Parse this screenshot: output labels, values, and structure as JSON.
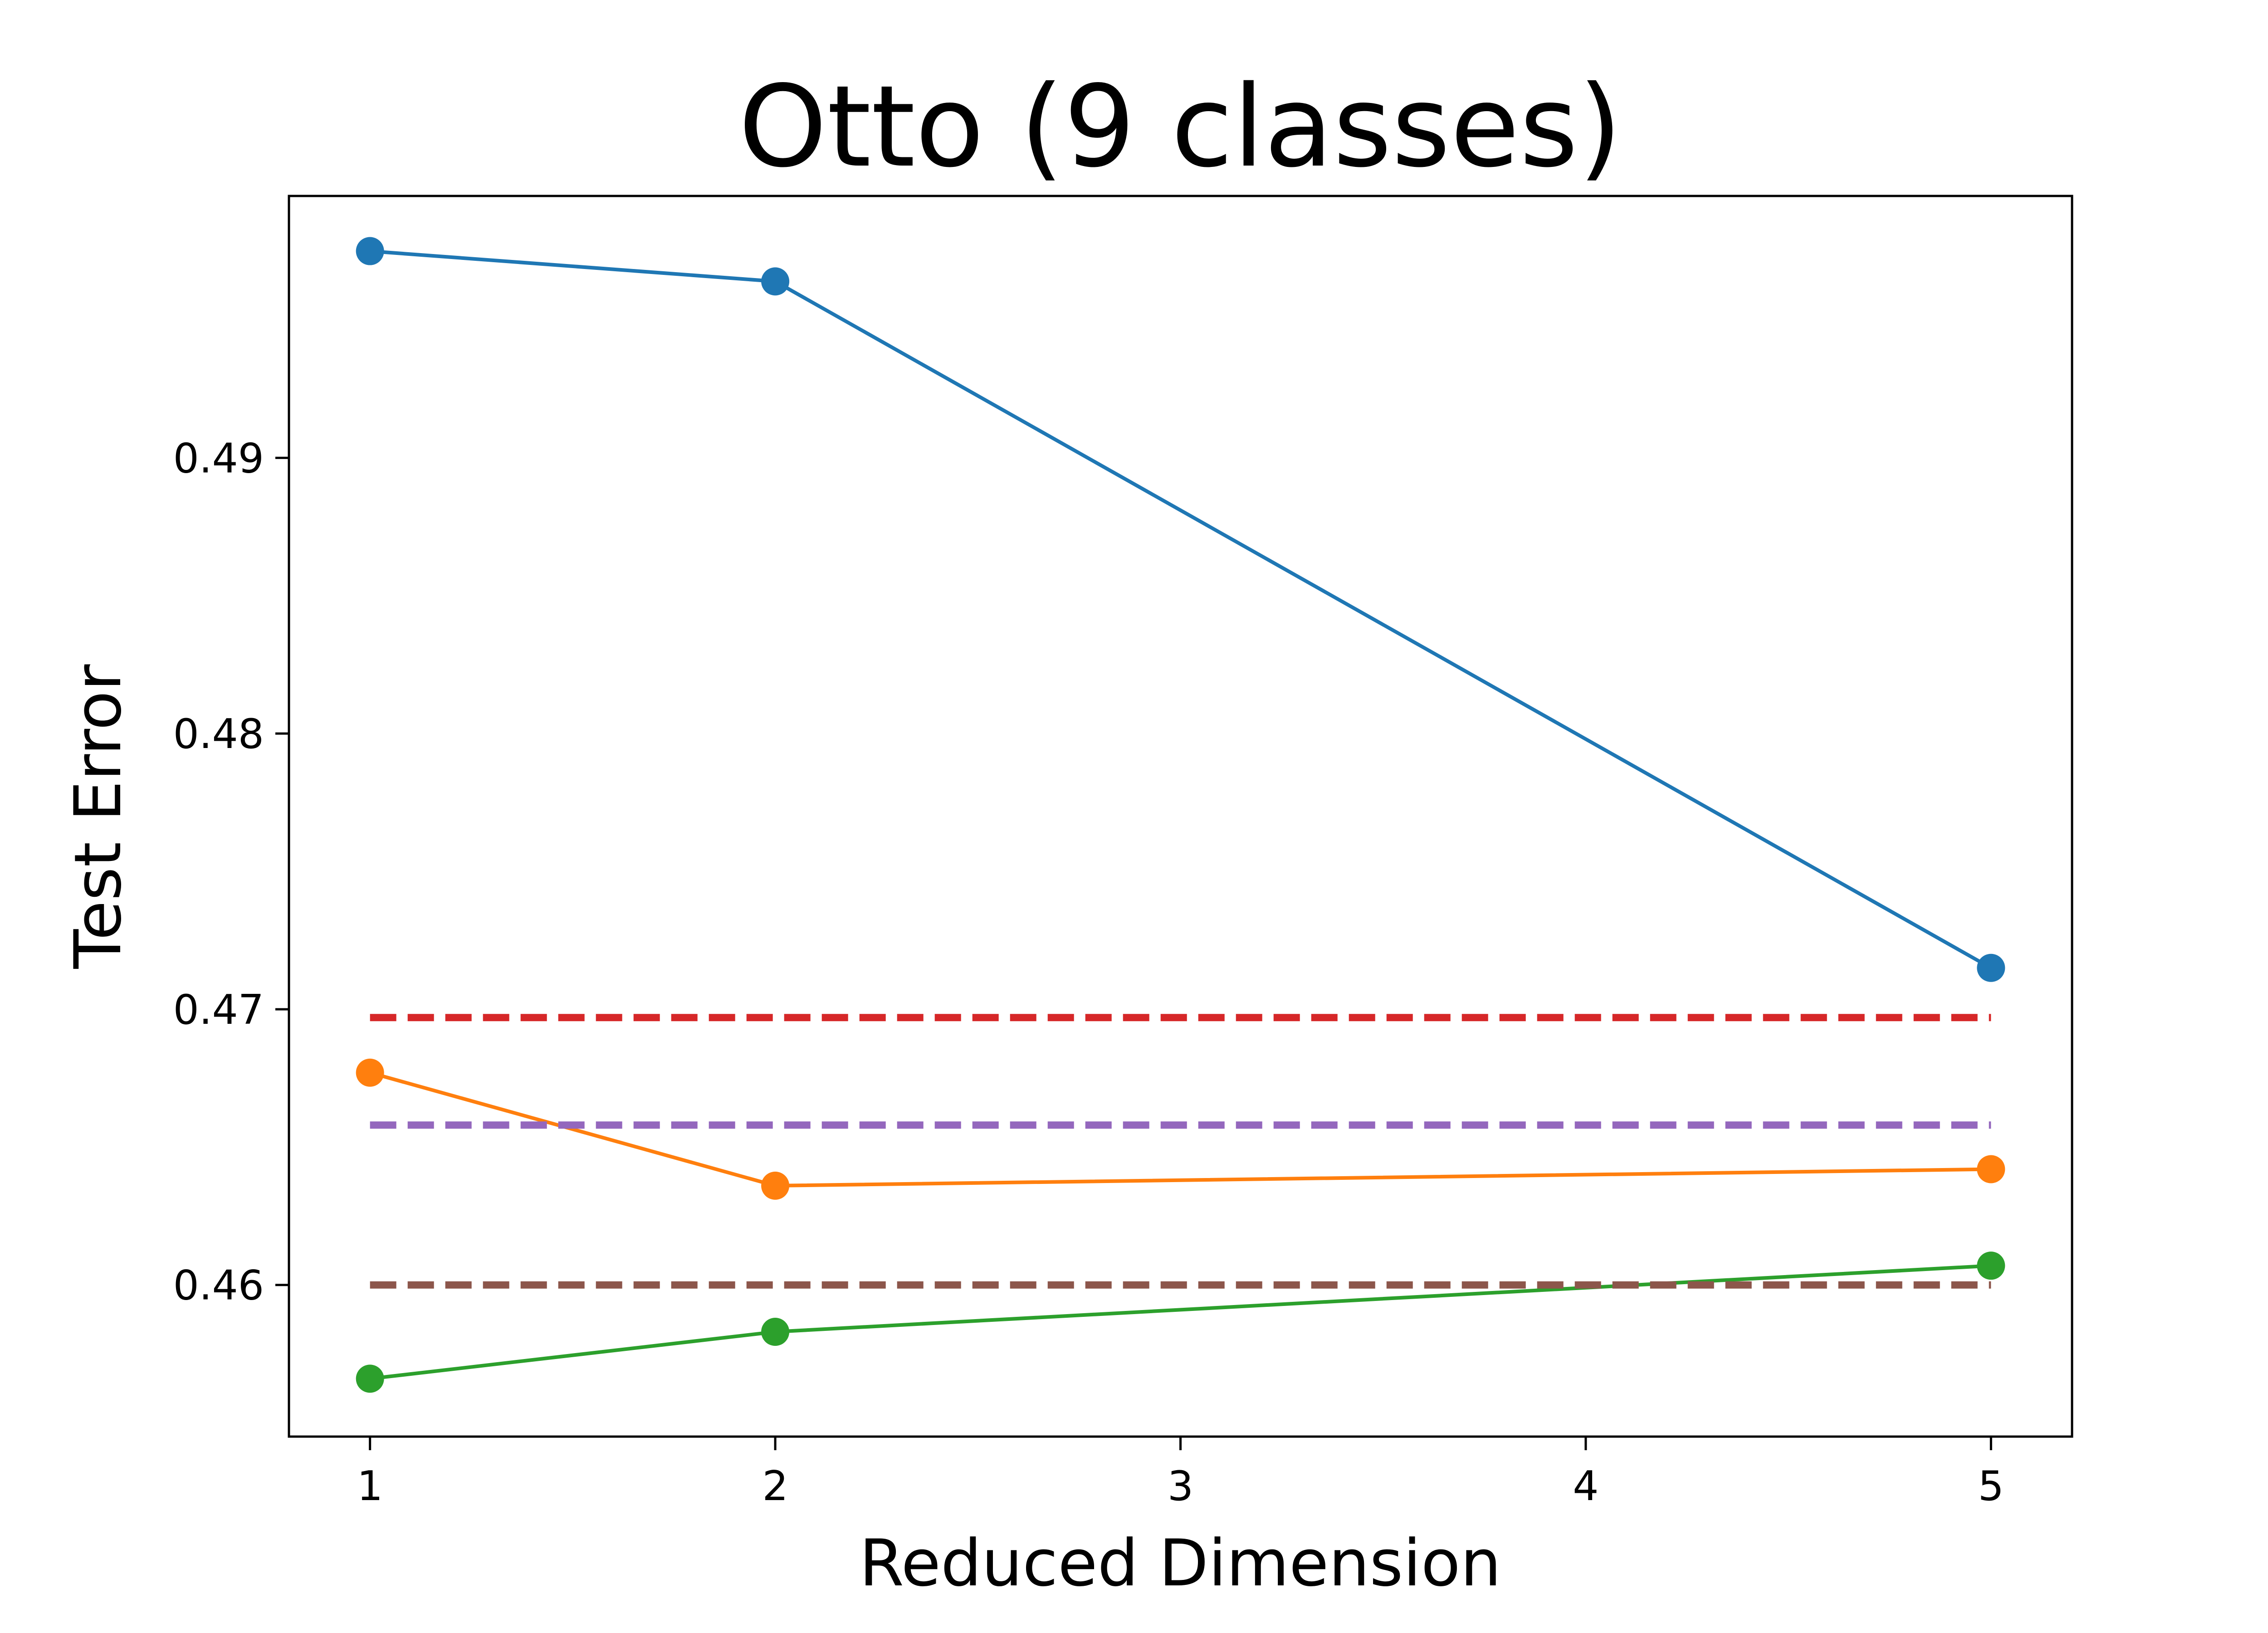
{
  "chart_data": {
    "type": "line",
    "title": "Otto (9 classes)",
    "xlabel": "Reduced Dimension",
    "ylabel": "Test Error",
    "x_ticks": [
      1,
      2,
      3,
      4,
      5
    ],
    "y_ticks": [
      0.46,
      0.47,
      0.48,
      0.49
    ],
    "xlim": [
      0.8,
      5.2
    ],
    "ylim": [
      0.4545,
      0.4995
    ],
    "grid": false,
    "series": [
      {
        "style": "solid-marker",
        "color": "#1f77b4",
        "x": [
          1,
          2,
          5
        ],
        "values": [
          0.4975,
          0.4964,
          0.4715
        ]
      },
      {
        "style": "solid-marker",
        "color": "#ff7f0e",
        "x": [
          1,
          2,
          5
        ],
        "values": [
          0.4677,
          0.4636,
          0.4642
        ]
      },
      {
        "style": "solid-marker",
        "color": "#2ca02c",
        "x": [
          1,
          2,
          5
        ],
        "values": [
          0.4566,
          0.4583,
          0.4607
        ]
      },
      {
        "style": "dashed",
        "color": "#d62728",
        "x": [
          1,
          5
        ],
        "values": [
          0.4697,
          0.4697
        ]
      },
      {
        "style": "dashed",
        "color": "#9467bd",
        "x": [
          1,
          5
        ],
        "values": [
          0.4658,
          0.4658
        ]
      },
      {
        "style": "dashed",
        "color": "#8c564b",
        "x": [
          1,
          5
        ],
        "values": [
          0.46,
          0.46
        ]
      }
    ]
  }
}
